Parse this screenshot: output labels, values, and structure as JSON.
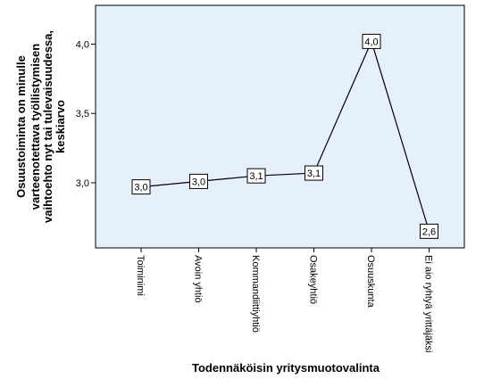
{
  "chart_data": {
    "type": "line",
    "xlabel": "Todennäköisin yritysmuotovalinta",
    "ylabel_lines": [
      "Osuustoiminta on minulle",
      "varteenotettava työllistymisen",
      "vaihtoehto nyt tai tulevaisuudessa,",
      "keskiarvo"
    ],
    "categories": [
      "Toiminimi",
      "Avoin yhtiö",
      "Kommandiittiyhtiö",
      "Osakeyhtiö",
      "Osuuskunta",
      "Ei aio ryhtyä yrittäjäksi"
    ],
    "values": [
      2.97,
      3.01,
      3.05,
      3.07,
      4.02,
      2.65
    ],
    "data_labels": [
      "3,0",
      "3,0",
      "3,1",
      "3,1",
      "4,0",
      "2,6"
    ],
    "yticks": [
      {
        "value": 3.0,
        "label": "3,0"
      },
      {
        "value": 3.5,
        "label": "3,5"
      },
      {
        "value": 4.0,
        "label": "4,0"
      }
    ],
    "ylim": [
      2.53,
      4.28
    ],
    "grid": false,
    "colors": {
      "plot_background": "#e6f0fb",
      "line": "#000000",
      "marker_fill": "#ffffff",
      "border": "#000000"
    }
  }
}
